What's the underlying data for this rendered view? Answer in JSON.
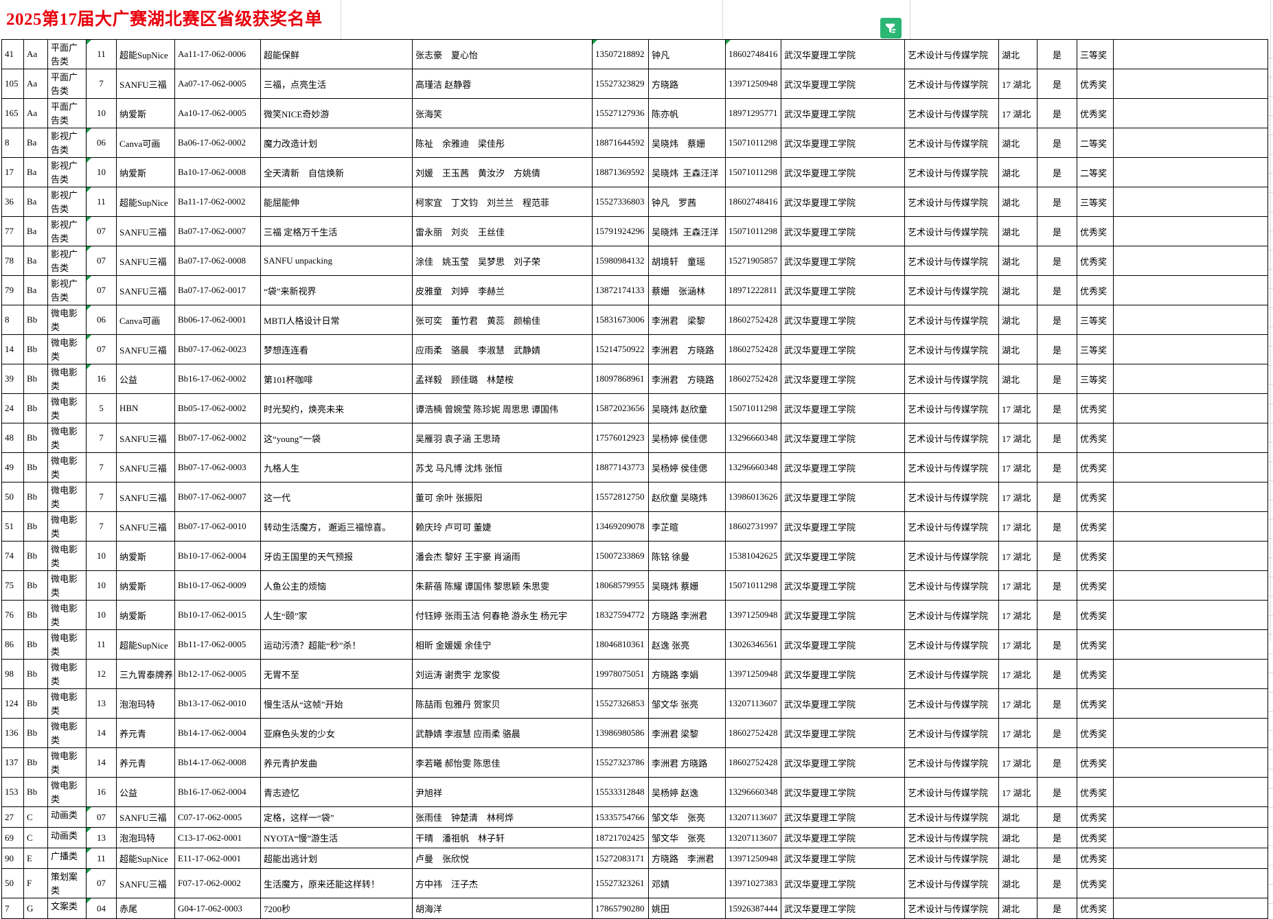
{
  "sheet": {
    "title": "2025第17届大广赛湖北赛区省级获奖名单",
    "filter_icon": "filter-icon"
  },
  "colors": {
    "title_red": "#e8000d",
    "filter_green": "#2bb673",
    "flag_green": "#18a04a",
    "border": "#000000",
    "gridline": "#d9d9d9"
  },
  "common": {
    "school": "武汉华夏理工学院",
    "college": "艺术设计与传媒学院",
    "confirm": "是"
  },
  "rows": [
    {
      "no": "41",
      "cat": "Aa",
      "type": "平面广告类",
      "bn": "11",
      "brand": "超能SupNice",
      "code": "Aa11-17-062-0006",
      "work": "超能保鲜",
      "students": "张志豪　夏心怡",
      "phone": "13507218892",
      "teachers": "钟凡",
      "tphone": "18602748416",
      "region": "湖北",
      "award": "三等奖",
      "flags": [
        "bn",
        "phone",
        "tphone"
      ]
    },
    {
      "no": "105",
      "cat": "Aa",
      "type": "平面广告类",
      "bn": "7",
      "brand": "SANFU三福",
      "code": "Aa07-17-062-0005",
      "work": "三福，点亮生活",
      "students": "高瑾洁 赵静蓉",
      "phone": "15527323829",
      "teachers": "方晓路",
      "tphone": "13971250948",
      "region": "17 湖北",
      "award": "优秀奖",
      "flags": []
    },
    {
      "no": "165",
      "cat": "Aa",
      "type": "平面广告类",
      "bn": "10",
      "brand": "纳爱斯",
      "code": "Aa10-17-062-0005",
      "work": "微笑NICE奇妙游",
      "students": "张海笑",
      "phone": "15527127936",
      "teachers": "陈亦帆",
      "tphone": "18971295771",
      "region": "17 湖北",
      "award": "优秀奖",
      "flags": []
    },
    {
      "no": "8",
      "cat": "Ba",
      "type": "影视广告类",
      "bn": "06",
      "brand": "Canva可画",
      "code": "Ba06-17-062-0002",
      "work": "魔力改造计划",
      "students": "陈祉　余雅迪　梁佳彤",
      "phone": "18871644592",
      "teachers": "吴晓炜　蔡姗",
      "tphone": "15071011298",
      "region": "湖北",
      "award": "二等奖",
      "flags": [
        "bn"
      ]
    },
    {
      "no": "17",
      "cat": "Ba",
      "type": "影视广告类",
      "bn": "10",
      "brand": "纳爱斯",
      "code": "Ba10-17-062-0008",
      "work": "全天清新　自信焕新",
      "students": "刘媛　王玉茜　黄汝汐　方姚倩",
      "phone": "18871369592",
      "teachers": "吴晓炜  王森汪洋",
      "tphone": "15071011298",
      "region": "湖北",
      "award": "二等奖",
      "flags": [
        "bn"
      ]
    },
    {
      "no": "36",
      "cat": "Ba",
      "type": "影视广告类",
      "bn": "11",
      "brand": "超能SupNice",
      "code": "Ba11-17-062-0002",
      "work": "能屈能伸",
      "students": "柯家宜　丁文钧　刘兰兰　程范菲",
      "phone": "15527336803",
      "teachers": "钟凡　罗茜",
      "tphone": "18602748416",
      "region": "湖北",
      "award": "三等奖",
      "flags": [
        "bn"
      ]
    },
    {
      "no": "77",
      "cat": "Ba",
      "type": "影视广告类",
      "bn": "07",
      "brand": "SANFU三福",
      "code": "Ba07-17-062-0007",
      "work": "三福 定格万千生活",
      "students": "雷永丽　刘炎　王丝佳",
      "phone": "15791924296",
      "teachers": "吴晓炜  王森汪洋",
      "tphone": "15071011298",
      "region": "湖北",
      "award": "优秀奖",
      "flags": [
        "bn"
      ]
    },
    {
      "no": "78",
      "cat": "Ba",
      "type": "影视广告类",
      "bn": "07",
      "brand": "SANFU三福",
      "code": "Ba07-17-062-0008",
      "work": "SANFU unpacking",
      "students": "涂佳　姚玉莹　吴梦思　刘子荣",
      "phone": "15980984132",
      "teachers": "胡境轩　童瑶",
      "tphone": "15271905857",
      "region": "湖北",
      "award": "优秀奖",
      "flags": [
        "bn"
      ]
    },
    {
      "no": "79",
      "cat": "Ba",
      "type": "影视广告类",
      "bn": "07",
      "brand": "SANFU三福",
      "code": "Ba07-17-062-0017",
      "work": "“袋”来新视界",
      "students": "皮雅童　刘婷　李赫兰",
      "phone": "13872174133",
      "teachers": "蔡姗　张涵林",
      "tphone": "18971222811",
      "region": "湖北",
      "award": "优秀奖",
      "flags": [
        "bn"
      ]
    },
    {
      "no": "8",
      "cat": "Bb",
      "type": "微电影类",
      "bn": "06",
      "brand": "Canva可画",
      "code": "Bb06-17-062-0001",
      "work": "MBTI人格设计日常",
      "students": "张可奕　董竹君　黄蕊　颜榆佳",
      "phone": "15831673006",
      "teachers": "李洲君　梁黎",
      "tphone": "18602752428",
      "region": "湖北",
      "award": "三等奖",
      "flags": [
        "bn"
      ]
    },
    {
      "no": "14",
      "cat": "Bb",
      "type": "微电影类",
      "bn": "07",
      "brand": "SANFU三福",
      "code": "Bb07-17-062-0023",
      "work": "梦想连连看",
      "students": "应雨柔　骆晨　李淑慧　武静婧",
      "phone": "15214750922",
      "teachers": "李洲君　方晓路",
      "tphone": "18602752428",
      "region": "湖北",
      "award": "三等奖",
      "flags": [
        "bn"
      ]
    },
    {
      "no": "39",
      "cat": "Bb",
      "type": "微电影类",
      "bn": "16",
      "brand": "公益",
      "code": "Bb16-17-062-0002",
      "work": "第101杯咖啡",
      "students": "孟祥毅　顾佳璐　林楚桉",
      "phone": "18097868961",
      "teachers": "李洲君　方晓路",
      "tphone": "18602752428",
      "region": "湖北",
      "award": "三等奖",
      "flags": [
        "bn"
      ]
    },
    {
      "no": "24",
      "cat": "Bb",
      "type": "微电影类",
      "bn": "5",
      "brand": "HBN",
      "code": "Bb05-17-062-0002",
      "work": "时光契约，焕亮未来",
      "students": "谭浩楠 曾婉莹 陈珍妮 周思思 谭国伟",
      "phone": "15872023656",
      "teachers": "吴晓炜 赵欣童",
      "tphone": "15071011298",
      "region": "17 湖北",
      "award": "优秀奖",
      "flags": []
    },
    {
      "no": "48",
      "cat": "Bb",
      "type": "微电影类",
      "bn": "7",
      "brand": "SANFU三福",
      "code": "Bb07-17-062-0002",
      "work": "这“young”一袋",
      "students": "吴雁羽 袁子涵 王思琦",
      "phone": "17576012923",
      "teachers": "吴杨婷 侯佳偲",
      "tphone": "13296660348",
      "region": "17 湖北",
      "award": "优秀奖",
      "flags": []
    },
    {
      "no": "49",
      "cat": "Bb",
      "type": "微电影类",
      "bn": "7",
      "brand": "SANFU三福",
      "code": "Bb07-17-062-0003",
      "work": "九格人生",
      "students": "苏戈 马凡博 沈炜 张恒",
      "phone": "18877143773",
      "teachers": "吴杨婷 侯佳偲",
      "tphone": "13296660348",
      "region": "17 湖北",
      "award": "优秀奖",
      "flags": []
    },
    {
      "no": "50",
      "cat": "Bb",
      "type": "微电影类",
      "bn": "7",
      "brand": "SANFU三福",
      "code": "Bb07-17-062-0007",
      "work": "这一代",
      "students": "董可 余叶 张振阳",
      "phone": "15572812750",
      "teachers": "赵欣童 吴晓炜",
      "tphone": "13986013626",
      "region": "17 湖北",
      "award": "优秀奖",
      "flags": []
    },
    {
      "no": "51",
      "cat": "Bb",
      "type": "微电影类",
      "bn": "7",
      "brand": "SANFU三福",
      "code": "Bb07-17-062-0010",
      "work": "转动生活魔方， 邂逅三福惊喜。",
      "students": "赖庆玲 卢可可 董婕",
      "phone": "13469209078",
      "teachers": "李芷暄",
      "tphone": "18602731997",
      "region": "17 湖北",
      "award": "优秀奖",
      "flags": []
    },
    {
      "no": "74",
      "cat": "Bb",
      "type": "微电影类",
      "bn": "10",
      "brand": "纳爱斯",
      "code": "Bb10-17-062-0004",
      "work": "牙齿王国里的天气预报",
      "students": "潘会杰 黎好 王宇豪 肖涵雨",
      "phone": "15007233869",
      "teachers": "陈铭 徐曼",
      "tphone": "15381042625",
      "region": "17 湖北",
      "award": "优秀奖",
      "flags": []
    },
    {
      "no": "75",
      "cat": "Bb",
      "type": "微电影类",
      "bn": "10",
      "brand": "纳爱斯",
      "code": "Bb10-17-062-0009",
      "work": "人鱼公主的烦恼",
      "students": "朱薪蓓 陈耀 谭国伟 黎思颖 朱思雯",
      "phone": "18068579955",
      "teachers": "吴晓炜 蔡姗",
      "tphone": "15071011298",
      "region": "17 湖北",
      "award": "优秀奖",
      "flags": []
    },
    {
      "no": "76",
      "cat": "Bb",
      "type": "微电影类",
      "bn": "10",
      "brand": "纳爱斯",
      "code": "Bb10-17-062-0015",
      "work": "人生“颐”家",
      "students": "付钰婷 张雨玉洁 何春艳 游永生 杨元宇",
      "phone": "18327594772",
      "teachers": "方晓路 李洲君",
      "tphone": "13971250948",
      "region": "17 湖北",
      "award": "优秀奖",
      "flags": []
    },
    {
      "no": "86",
      "cat": "Bb",
      "type": "微电影类",
      "bn": "11",
      "brand": "超能SupNice",
      "code": "Bb11-17-062-0005",
      "work": "运动污渍？超能“秒”杀！",
      "students": "相昕 金媛媛 余佳宁",
      "phone": "18046810361",
      "teachers": "赵逸 张亮",
      "tphone": "13026346561",
      "region": "17 湖北",
      "award": "优秀奖",
      "flags": []
    },
    {
      "no": "98",
      "cat": "Bb",
      "type": "微电影类",
      "bn": "12",
      "brand": "三九胃泰牌养",
      "code": "Bb12-17-062-0005",
      "work": "无胃不至",
      "students": "刘运涛 谢贵宇 龙家俊",
      "phone": "19978075051",
      "teachers": "方晓路 李娟",
      "tphone": "13971250948",
      "region": "17 湖北",
      "award": "优秀奖",
      "flags": []
    },
    {
      "no": "124",
      "cat": "Bb",
      "type": "微电影类",
      "bn": "13",
      "brand": "泡泡玛特",
      "code": "Bb13-17-062-0010",
      "work": "慢生活从“这帧”开始",
      "students": "陈喆雨 包雅丹 贺家贝",
      "phone": "15527326853",
      "teachers": "邹文华 张亮",
      "tphone": "13207113607",
      "region": "17 湖北",
      "award": "优秀奖",
      "flags": []
    },
    {
      "no": "136",
      "cat": "Bb",
      "type": "微电影类",
      "bn": "14",
      "brand": "养元青",
      "code": "Bb14-17-062-0004",
      "work": "亚麻色头发的少女",
      "students": "武静婧 李淑慧 应雨柔 骆晨",
      "phone": "13986980586",
      "teachers": "李洲君 梁黎",
      "tphone": "18602752428",
      "region": "17 湖北",
      "award": "优秀奖",
      "flags": []
    },
    {
      "no": "137",
      "cat": "Bb",
      "type": "微电影类",
      "bn": "14",
      "brand": "养元青",
      "code": "Bb14-17-062-0008",
      "work": "养元青护发曲",
      "students": "李若曦 郝怡雯 陈思佳",
      "phone": "15527323786",
      "teachers": "李洲君 方晓路",
      "tphone": "18602752428",
      "region": "17 湖北",
      "award": "优秀奖",
      "flags": []
    },
    {
      "no": "153",
      "cat": "Bb",
      "type": "微电影类",
      "bn": "16",
      "brand": "公益",
      "code": "Bb16-17-062-0004",
      "work": "青志迹忆",
      "students": "尹旭祥",
      "phone": "15533312848",
      "teachers": "吴杨婷 赵逸",
      "tphone": "13296660348",
      "region": "17 湖北",
      "award": "优秀奖",
      "flags": []
    },
    {
      "no": "27",
      "cat": "C",
      "type": "动画类",
      "bn": "07",
      "brand": "SANFU三福",
      "code": "C07-17-062-0005",
      "work": "定格，这样一“袋”",
      "students": "张雨佳　钟楚清　林柯烨",
      "phone": "15335754766",
      "teachers": "邹文华　张亮",
      "tphone": "13207113607",
      "region": "湖北",
      "award": "优秀奖",
      "flags": [
        "bn"
      ]
    },
    {
      "no": "69",
      "cat": "C",
      "type": "动画类",
      "bn": "13",
      "brand": "泡泡玛特",
      "code": "C13-17-062-0001",
      "work": "NYOTA“慢”游生活",
      "students": "干晴　潘祖帆　林子轩",
      "phone": "18721702425",
      "teachers": "邹文华　张亮",
      "tphone": "13207113607",
      "region": "湖北",
      "award": "优秀奖",
      "flags": [
        "bn"
      ]
    },
    {
      "no": "90",
      "cat": "E",
      "type": "广播类",
      "bn": "11",
      "brand": "超能SupNice",
      "code": "E11-17-062-0001",
      "work": "超能出逃计划",
      "students": "卢曼　张欣悦",
      "phone": "15272083171",
      "teachers": "方晓路　李洲君",
      "tphone": "13971250948",
      "region": "湖北",
      "award": "优秀奖",
      "flags": [
        "bn"
      ]
    },
    {
      "no": "50",
      "cat": "F",
      "type": "策划案类",
      "bn": "07",
      "brand": "SANFU三福",
      "code": "F07-17-062-0002",
      "work": "生活魔方，原来还能这样转！",
      "students": "方中祎　汪子杰",
      "phone": "15527323261",
      "teachers": "邓婧",
      "tphone": "13971027383",
      "region": "湖北",
      "award": "优秀奖",
      "flags": [
        "bn"
      ]
    },
    {
      "no": "7",
      "cat": "G",
      "type": "文案类",
      "bn": "04",
      "brand": "赤尾",
      "code": "G04-17-062-0003",
      "work": "7200秒",
      "students": "胡海洋",
      "phone": "17865790280",
      "teachers": "姚田",
      "tphone": "15926387444",
      "region": "湖北",
      "award": "优秀奖",
      "flags": [
        "bn"
      ]
    }
  ]
}
